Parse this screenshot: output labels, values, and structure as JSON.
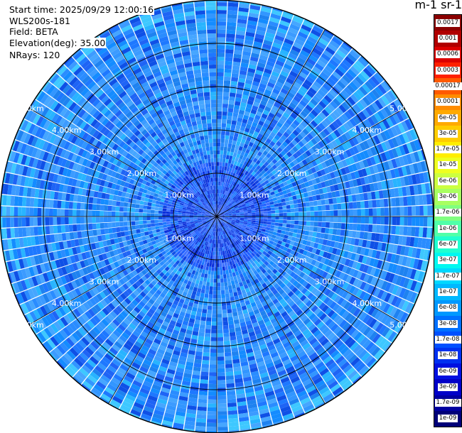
{
  "header": {
    "start_time": "Start time: 2025/09/29 12:00:16",
    "instrument": "WLS200s-181",
    "field": "Field: BETA",
    "elevation": "Elevation(deg): 35.00",
    "nrays": "NRays: 120"
  },
  "colorbar": {
    "title": "m-1 sr-1",
    "ticks": [
      "0.0017",
      "0.001",
      "0.0006",
      "0.0003",
      "0.00017",
      "0.0001",
      "6e-05",
      "3e-05",
      "1.7e-05",
      "1e-05",
      "6e-06",
      "3e-06",
      "1.7e-06",
      "1e-06",
      "6e-07",
      "3e-07",
      "1.7e-07",
      "1e-07",
      "6e-08",
      "3e-08",
      "1.7e-08",
      "1e-08",
      "6e-09",
      "3e-09",
      "1.7e-09",
      "1e-09"
    ],
    "colors": [
      "#8b0000",
      "#b00000",
      "#dc0000",
      "#ff2000",
      "#ff5a00",
      "#ff8c00",
      "#ffaa00",
      "#ffcc00",
      "#ffee00",
      "#eeff20",
      "#ccff40",
      "#a8ff60",
      "#80ff80",
      "#50ffa8",
      "#20ffd0",
      "#00f8f0",
      "#00d8ff",
      "#00b8ff",
      "#0098ff",
      "#0070ff",
      "#0050ff",
      "#0030f0",
      "#0010e0",
      "#0000c8",
      "#0000a0",
      "#000078"
    ]
  },
  "chart_data": {
    "type": "heatmap",
    "projection": "polar (PPI)",
    "field": "BETA",
    "nrays": 120,
    "elevation_deg": 35.0,
    "max_range_km": 5.0,
    "range_ring_labels": [
      "1.00km",
      "2.00km",
      "3.00km",
      "4.00km",
      "5.00km"
    ],
    "range_rings_km": [
      1,
      2,
      3,
      4,
      5
    ],
    "scale": "log"
  }
}
